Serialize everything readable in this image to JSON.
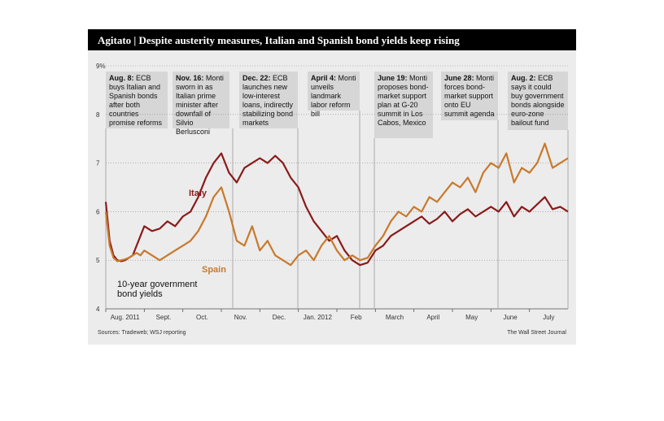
{
  "chart_data": {
    "type": "line",
    "title_kicker": "Agitato",
    "title": "Despite austerity measures, Italian and Spanish bond yields keep rising",
    "ylim": [
      4,
      9
    ],
    "yticks": [
      "9%",
      "8",
      "7",
      "6",
      "5",
      "4"
    ],
    "xticks": [
      "Aug. 2011",
      "Sept.",
      "Oct.",
      "Nov.",
      "Dec.",
      "Jan. 2012",
      "Feb",
      "March",
      "April",
      "May",
      "June",
      "July"
    ],
    "note": "10-year government bond yields",
    "source": "Sources: Tradeweb; WSJ reporting",
    "credit": "The Wall Street Journal",
    "colors": {
      "italy": "#8b1a1a",
      "spain": "#c8792c",
      "background": "#ececec",
      "annotation": "#d6d6d6"
    },
    "series": [
      {
        "name": "Italy",
        "x": [
          0,
          0.1,
          0.2,
          0.3,
          0.4,
          0.5,
          0.6,
          0.7,
          0.8,
          0.9,
          1.0,
          1.2,
          1.4,
          1.6,
          1.8,
          2.0,
          2.2,
          2.4,
          2.6,
          2.8,
          3.0,
          3.2,
          3.4,
          3.6,
          3.8,
          4.0,
          4.2,
          4.4,
          4.6,
          4.8,
          5.0,
          5.2,
          5.4,
          5.6,
          5.8,
          6.0,
          6.2,
          6.4,
          6.6,
          6.8,
          7.0,
          7.2,
          7.4,
          7.6,
          7.8,
          8.0,
          8.2,
          8.4,
          8.6,
          8.8,
          9.0,
          9.2,
          9.4,
          9.6,
          9.8,
          10.0,
          10.2,
          10.4,
          10.6,
          10.8,
          11.0,
          11.2,
          11.4,
          11.6,
          11.8,
          12.0
        ],
        "values": [
          6.2,
          5.4,
          5.1,
          5.0,
          4.98,
          5.0,
          5.05,
          5.1,
          5.3,
          5.5,
          5.7,
          5.6,
          5.65,
          5.8,
          5.7,
          5.9,
          6.0,
          6.3,
          6.7,
          7.0,
          7.2,
          6.8,
          6.6,
          6.9,
          7.0,
          7.1,
          7.0,
          7.15,
          7.0,
          6.7,
          6.5,
          6.1,
          5.8,
          5.6,
          5.4,
          5.5,
          5.2,
          5.0,
          4.9,
          4.95,
          5.2,
          5.3,
          5.5,
          5.6,
          5.7,
          5.8,
          5.9,
          5.75,
          5.85,
          6.0,
          5.8,
          5.95,
          6.05,
          5.9,
          6.0,
          6.1,
          6.0,
          6.2,
          5.9,
          6.1,
          6.0,
          6.15,
          6.3,
          6.05,
          6.1,
          6.0
        ]
      },
      {
        "name": "Spain",
        "x": [
          0,
          0.1,
          0.2,
          0.3,
          0.4,
          0.5,
          0.6,
          0.7,
          0.8,
          0.9,
          1.0,
          1.2,
          1.4,
          1.6,
          1.8,
          2.0,
          2.2,
          2.4,
          2.6,
          2.8,
          3.0,
          3.2,
          3.4,
          3.6,
          3.8,
          4.0,
          4.2,
          4.4,
          4.6,
          4.8,
          5.0,
          5.2,
          5.4,
          5.6,
          5.8,
          6.0,
          6.2,
          6.4,
          6.6,
          6.8,
          7.0,
          7.2,
          7.4,
          7.6,
          7.8,
          8.0,
          8.2,
          8.4,
          8.6,
          8.8,
          9.0,
          9.2,
          9.4,
          9.6,
          9.8,
          10.0,
          10.2,
          10.4,
          10.6,
          10.8,
          11.0,
          11.2,
          11.4,
          11.6,
          11.8,
          12.0
        ],
        "values": [
          6.0,
          5.3,
          5.05,
          4.98,
          5.0,
          5.02,
          5.05,
          5.1,
          5.15,
          5.1,
          5.2,
          5.1,
          5.0,
          5.1,
          5.2,
          5.3,
          5.4,
          5.6,
          5.9,
          6.3,
          6.5,
          6.0,
          5.4,
          5.3,
          5.7,
          5.2,
          5.4,
          5.1,
          5.0,
          4.9,
          5.1,
          5.2,
          5.0,
          5.3,
          5.5,
          5.2,
          5.0,
          5.1,
          5.0,
          5.05,
          5.3,
          5.5,
          5.8,
          6.0,
          5.9,
          6.1,
          6.0,
          6.3,
          6.2,
          6.4,
          6.6,
          6.5,
          6.7,
          6.4,
          6.8,
          7.0,
          6.9,
          7.2,
          6.6,
          6.9,
          6.8,
          7.0,
          7.4,
          6.9,
          7.0,
          7.1
        ]
      }
    ]
  },
  "annotations": [
    {
      "date": "Aug. 8:",
      "text": "ECB buys Italian and Spanish bonds after both countries promise reforms"
    },
    {
      "date": "Nov. 16:",
      "text": "Monti sworn in as Italian prime minister after downfall of Silvio Berlusconi"
    },
    {
      "date": "Dec. 22:",
      "text": "ECB launches new low-interest loans, indirectly stabilizing bond markets"
    },
    {
      "date": "April 4:",
      "text": "Monti unveils landmark labor reform bill"
    },
    {
      "date": "June 19:",
      "text": "Monti proposes bond-market support plan at G-20 summit in Los Cabos, Mexico"
    },
    {
      "date": "June 28:",
      "text": "Monti forces bond-market support onto EU summit agenda"
    },
    {
      "date": "Aug. 2:",
      "text": "ECB says it could buy government bonds alongside euro-zone bailout fund"
    }
  ]
}
